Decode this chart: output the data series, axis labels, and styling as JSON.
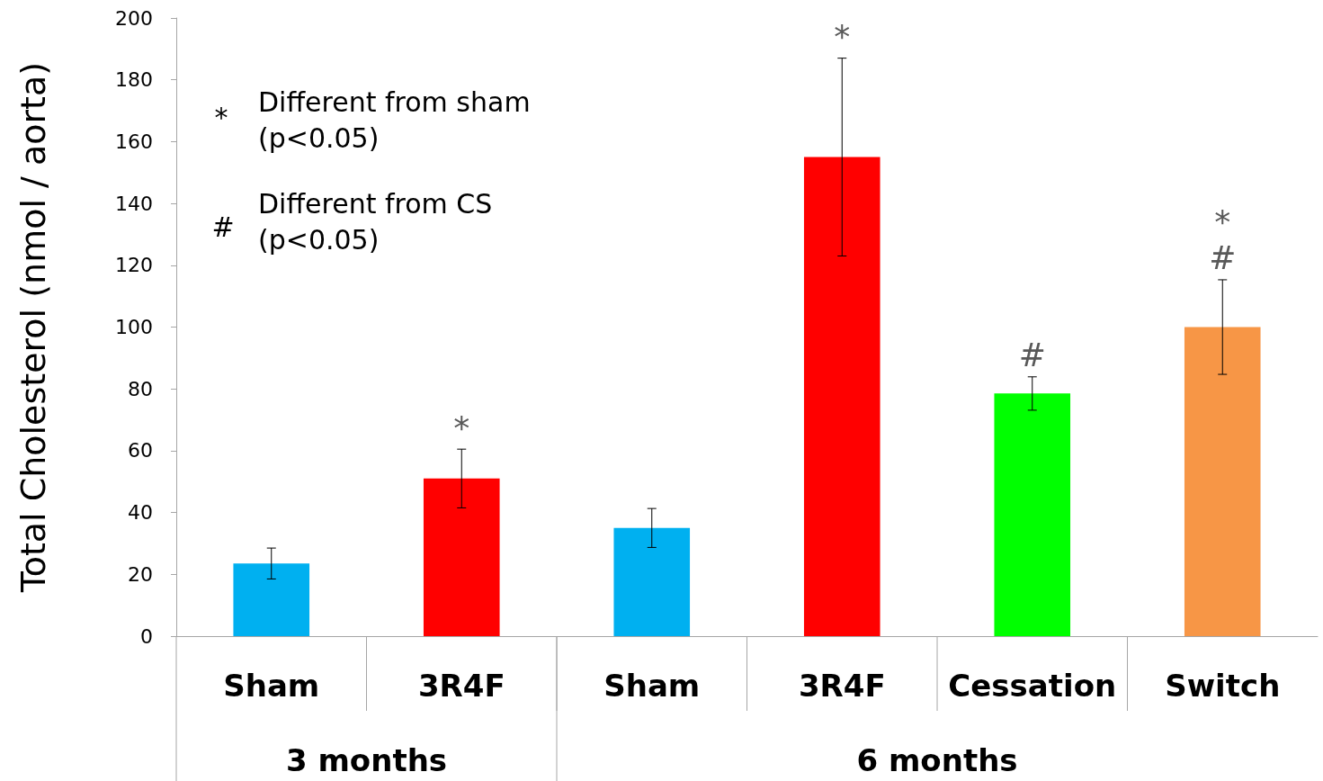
{
  "chart_data": {
    "type": "bar",
    "ylabel": "Total Cholesterol (nmol / aorta)",
    "categories": [
      "Sham",
      "3R4F",
      "Sham",
      "3R4F",
      "Cessation",
      "Switch"
    ],
    "values": [
      23.5,
      51,
      35,
      155,
      78.5,
      100
    ],
    "colors": [
      "#00b0f0",
      "#ff0000",
      "#00b0f0",
      "#ff0000",
      "#00ff00",
      "#f79646"
    ],
    "errors": [
      5,
      9.5,
      6.3,
      32,
      5.4,
      15.3
    ],
    "value_labels": [
      null,
      "*",
      null,
      "*",
      "#",
      "*\n#"
    ],
    "ylim": [
      0,
      200
    ],
    "yticks": [
      0,
      20,
      40,
      60,
      80,
      100,
      120,
      140,
      160,
      180,
      200
    ],
    "grid": false,
    "annotations": [
      "*",
      "Different from sham\n(p<0.05)",
      "#",
      "Different from CS\n(p<0.05)",
      "3 months",
      "6 months"
    ]
  }
}
